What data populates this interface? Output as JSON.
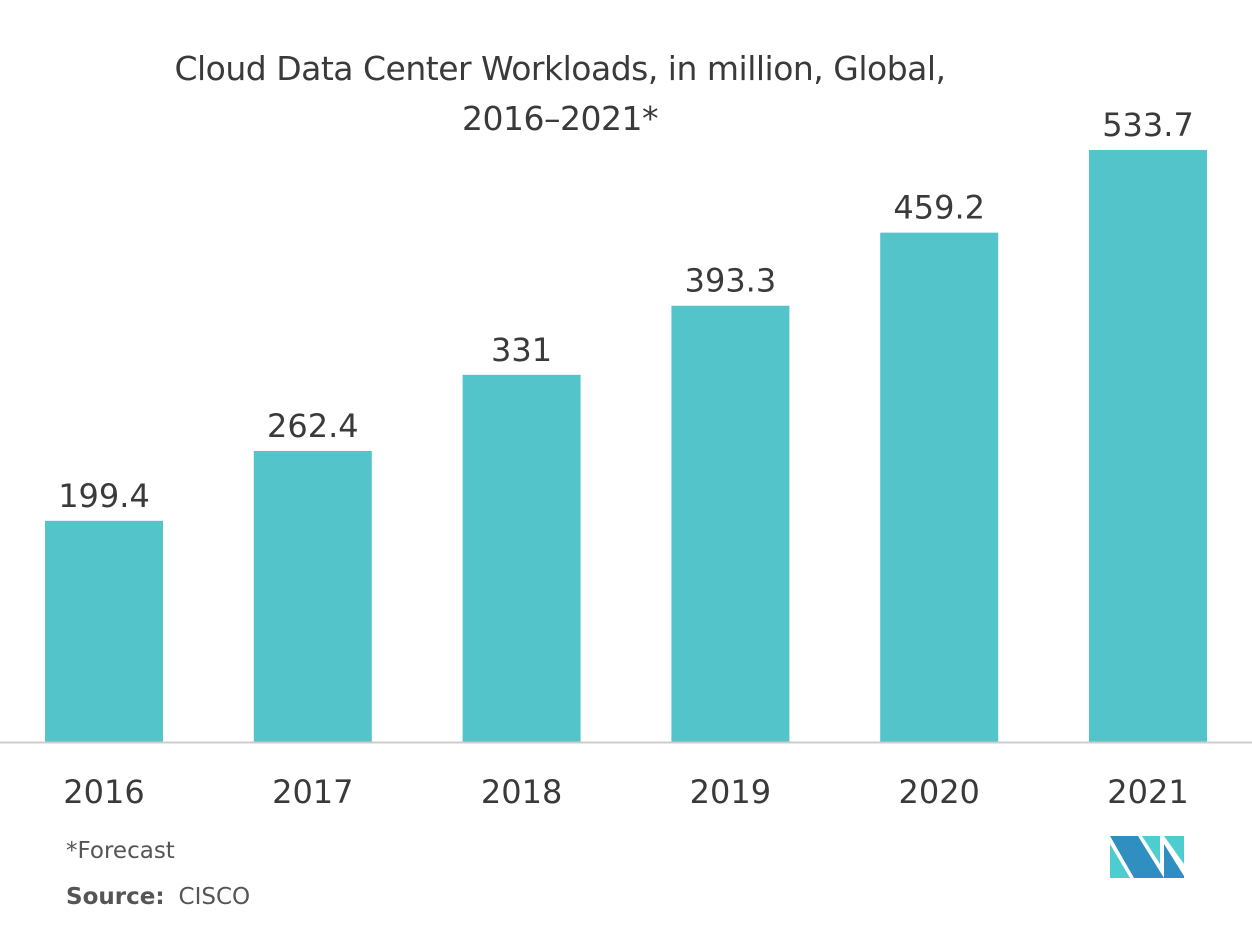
{
  "chart_data": {
    "type": "bar",
    "title": "Cloud Data Center Workloads, in million, Global, 2016–2021*",
    "title_lines": [
      "Cloud Data Center Workloads, in million, Global,",
      "2016–2021*"
    ],
    "categories": [
      "2016",
      "2017",
      "2018",
      "2019",
      "2020",
      "2021"
    ],
    "values": [
      199.4,
      262.4,
      331,
      393.3,
      459.2,
      533.7
    ],
    "value_labels": [
      "199.4",
      "262.4",
      "331",
      "393.3",
      "459.2",
      "533.7"
    ],
    "xlabel": "",
    "ylabel": "",
    "ylim": [
      0,
      533.7
    ],
    "grid": false,
    "bar_color": "#52c4ca",
    "axis_color": "#cccccc"
  },
  "footnote": "*Forecast",
  "source": {
    "label": "Source:",
    "value": "CISCO"
  },
  "logo": {
    "colors": [
      "#2e8fc0",
      "#4ecdd0"
    ]
  }
}
